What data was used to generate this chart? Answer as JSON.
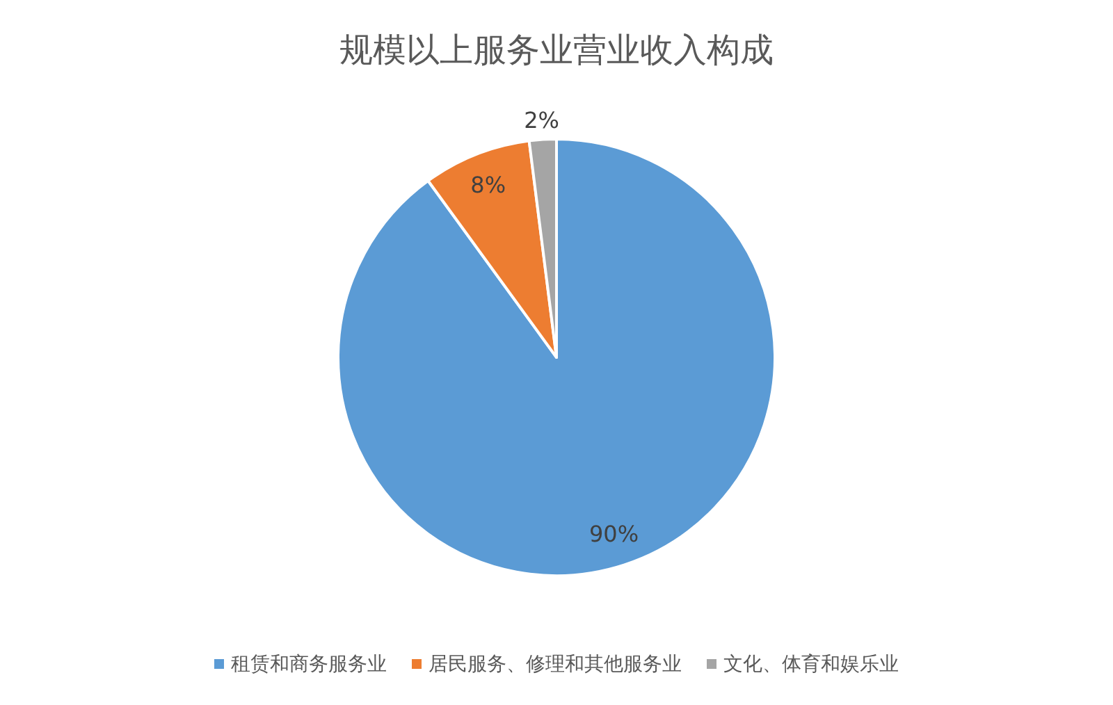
{
  "chart_data": {
    "type": "pie",
    "title": "规模以上服务业营业收入构成",
    "categories": [
      "租赁和商务服务业",
      "居民服务、修理和其他服务业",
      "文化、体育和娱乐业"
    ],
    "values": [
      90,
      8,
      2
    ],
    "colors": [
      "#5b9bd5",
      "#ed7d31",
      "#a5a5a5"
    ],
    "value_labels": [
      "90%",
      "8%",
      "2%"
    ],
    "legend": "bottom"
  }
}
